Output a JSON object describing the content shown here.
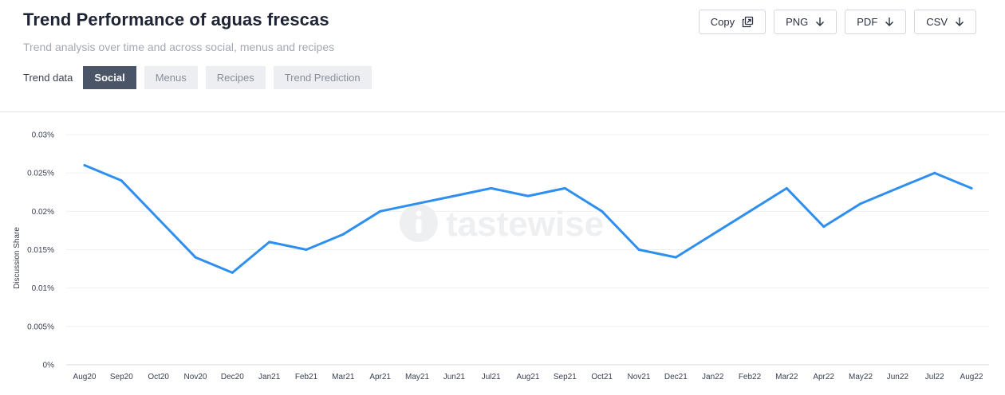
{
  "header": {
    "title": "Trend Performance of aguas frescas",
    "subtitle": "Trend analysis over time and across social, menus and recipes",
    "trend_label": "Trend data",
    "tabs": [
      {
        "label": "Social",
        "active": true
      },
      {
        "label": "Menus",
        "active": false
      },
      {
        "label": "Recipes",
        "active": false
      },
      {
        "label": "Trend Prediction",
        "active": false
      }
    ]
  },
  "export": {
    "copy": {
      "label": "Copy",
      "icon": "copy-icon"
    },
    "png": {
      "label": "PNG",
      "icon": "arrow-down-icon"
    },
    "pdf": {
      "label": "PDF",
      "icon": "arrow-down-icon"
    },
    "csv": {
      "label": "CSV",
      "icon": "arrow-down-icon"
    }
  },
  "watermark": {
    "text": "tastewise",
    "icon": "tastewise-logo-icon"
  },
  "colors": {
    "line": "#2f8ff0",
    "active_tab": "#4a5568",
    "grid": "#eeeff2"
  },
  "chart_data": {
    "type": "line",
    "ylabel": "Discussion Share",
    "xlabel": "",
    "ylim": [
      0,
      0.03
    ],
    "yticks": [
      "0%",
      "0.005%",
      "0.01%",
      "0.015%",
      "0.02%",
      "0.025%",
      "0.03%"
    ],
    "grid": true,
    "legend": "none",
    "categories": [
      "Aug20",
      "Sep20",
      "Oct20",
      "Nov20",
      "Dec20",
      "Jan21",
      "Feb21",
      "Mar21",
      "Apr21",
      "May21",
      "Jun21",
      "Jul21",
      "Aug21",
      "Sep21",
      "Oct21",
      "Nov21",
      "Dec21",
      "Jan22",
      "Feb22",
      "Mar22",
      "Apr22",
      "May22",
      "Jun22",
      "Jul22",
      "Aug22"
    ],
    "series": [
      {
        "values": [
          0.026,
          0.024,
          0.019,
          0.014,
          0.012,
          0.016,
          0.015,
          0.017,
          0.02,
          0.021,
          0.022,
          0.023,
          0.022,
          0.023,
          0.02,
          0.015,
          0.014,
          0.017,
          0.02,
          0.023,
          0.018,
          0.021,
          0.023,
          0.025,
          0.023
        ]
      }
    ]
  }
}
